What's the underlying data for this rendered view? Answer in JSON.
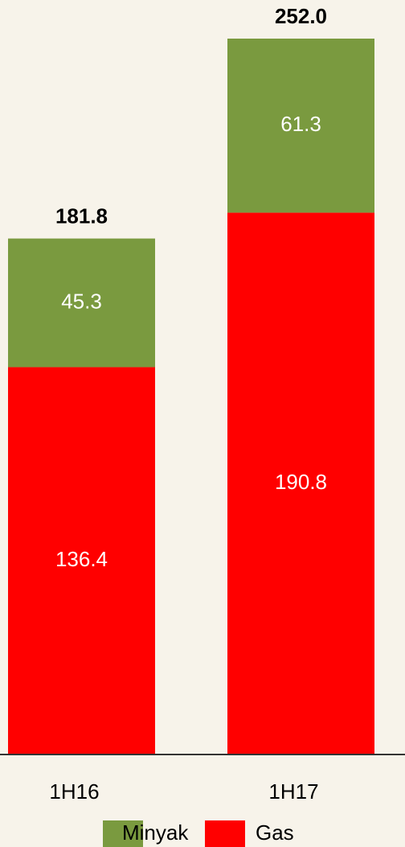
{
  "chart_data": {
    "type": "stacked_bar",
    "categories": [
      "1H16",
      "1H17"
    ],
    "series": [
      {
        "name": "Gas",
        "color": "#ff0000",
        "values": [
          136.4,
          190.8
        ]
      },
      {
        "name": "Minyak",
        "color": "#7a9a3f",
        "values": [
          45.3,
          61.3
        ]
      }
    ],
    "totals": {
      "values": [
        181.8,
        252.0
      ],
      "value_labels": [
        "181.8",
        "252.0"
      ]
    }
  }
}
